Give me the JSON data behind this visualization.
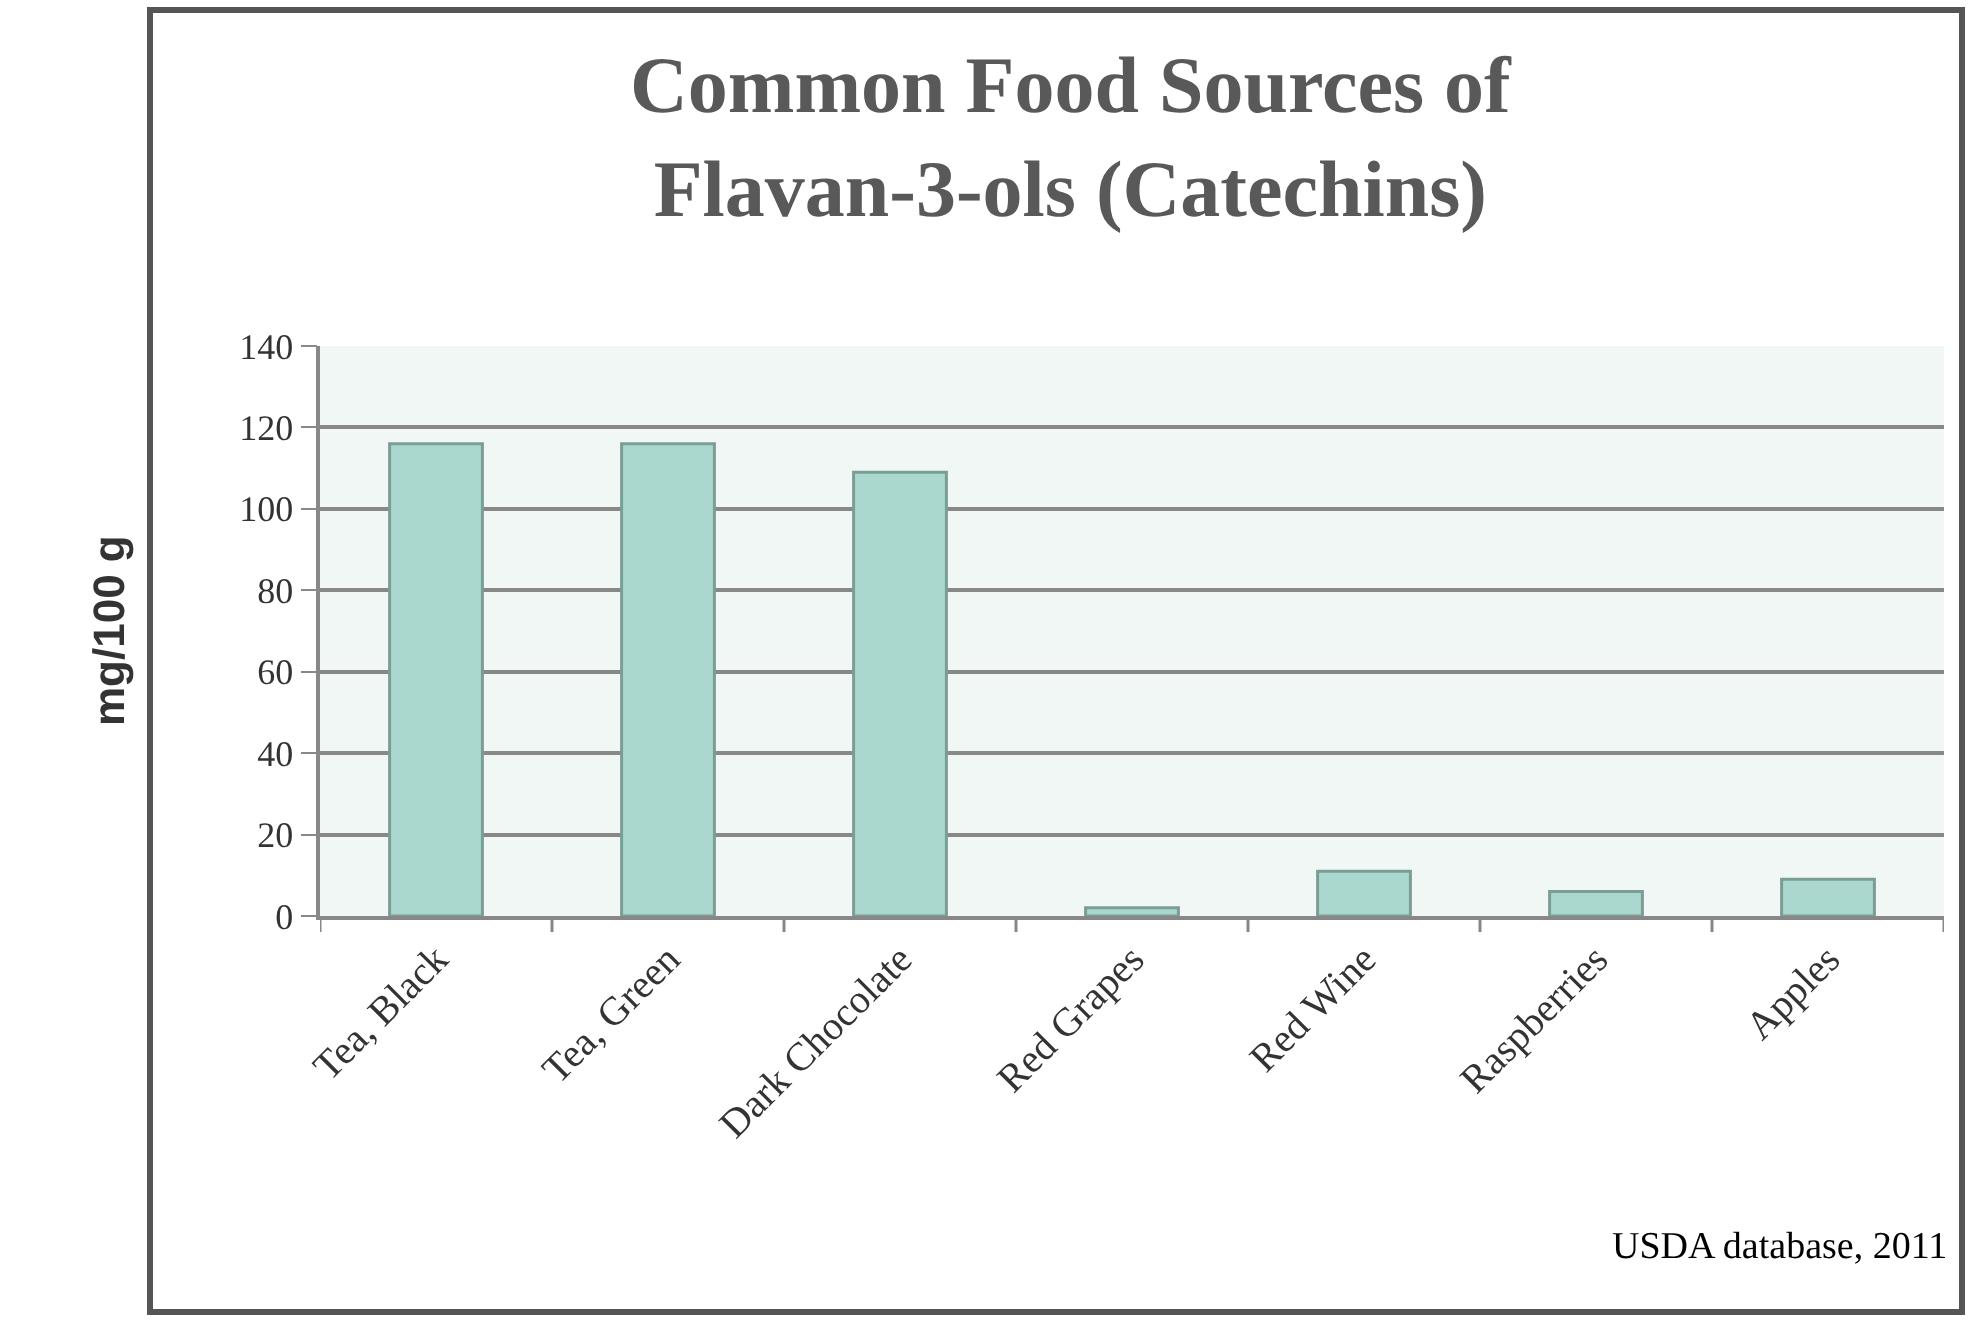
{
  "chart_data": {
    "type": "bar",
    "title": "Common Food Sources of\nFlavan-3-ols (Catechins)",
    "ylabel": "mg/100 g",
    "categories": [
      "Tea, Black",
      "Tea, Green",
      "Dark Chocolate",
      "Red Grapes",
      "Red Wine",
      "Raspberries",
      "Apples"
    ],
    "values": [
      116,
      116,
      109,
      2,
      11,
      6,
      9
    ],
    "color": "#aad8cf",
    "ylim": [
      0,
      140
    ],
    "yticks": [
      0,
      20,
      40,
      60,
      80,
      100,
      120,
      140
    ],
    "grid": "y",
    "legend": false,
    "annotations": [
      "USDA database, 2011"
    ]
  }
}
